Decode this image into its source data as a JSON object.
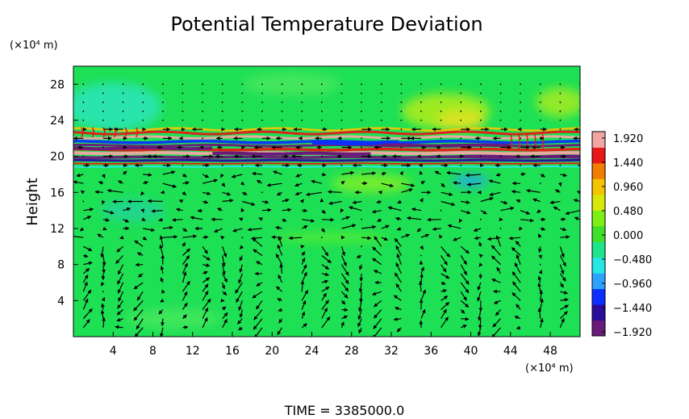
{
  "chart_data": {
    "type": "heatmap",
    "title": "Potential Temperature Deviation",
    "ylabel": "Height",
    "y_unit": "(×10⁴ m)",
    "x_unit": "(×10⁴ m)",
    "x_ticks": [
      "4",
      "8",
      "12",
      "16",
      "20",
      "24",
      "28",
      "32",
      "36",
      "40",
      "44",
      "48"
    ],
    "y_ticks": [
      "4",
      "8",
      "12",
      "16",
      "20",
      "24",
      "28"
    ],
    "xlim": [
      0,
      51
    ],
    "ylim": [
      0,
      30
    ],
    "colorbar": {
      "labels": [
        "1.920",
        "1.440",
        "0.960",
        "0.480",
        "0.000",
        "−0.480",
        "−0.960",
        "−1.440",
        "−1.920"
      ],
      "range": [
        -1.92,
        1.92
      ],
      "colors": [
        "#6a1b7a",
        "#2a0c9c",
        "#0b2fff",
        "#2fa2ff",
        "#27e6e6",
        "#1ee48a",
        "#3fe02a",
        "#7cf016",
        "#d8e80a",
        "#f4c400",
        "#f27d00",
        "#e81818",
        "#f3a5a5"
      ]
    },
    "background_value": 0.0,
    "features": [
      {
        "kind": "band",
        "y_center": 19.8,
        "value_pattern": "alternating positive/negative stripes"
      },
      {
        "kind": "blob",
        "x": 4,
        "y": 25,
        "value": -0.5
      },
      {
        "kind": "blob",
        "x": 38,
        "y": 24.5,
        "value": 0.7
      },
      {
        "kind": "blob",
        "x": 41,
        "y": 17.5,
        "value": -0.8
      }
    ],
    "overlay": "wind vector arrows"
  },
  "footer": {
    "time_label": "TIME  =  3385000.0"
  }
}
